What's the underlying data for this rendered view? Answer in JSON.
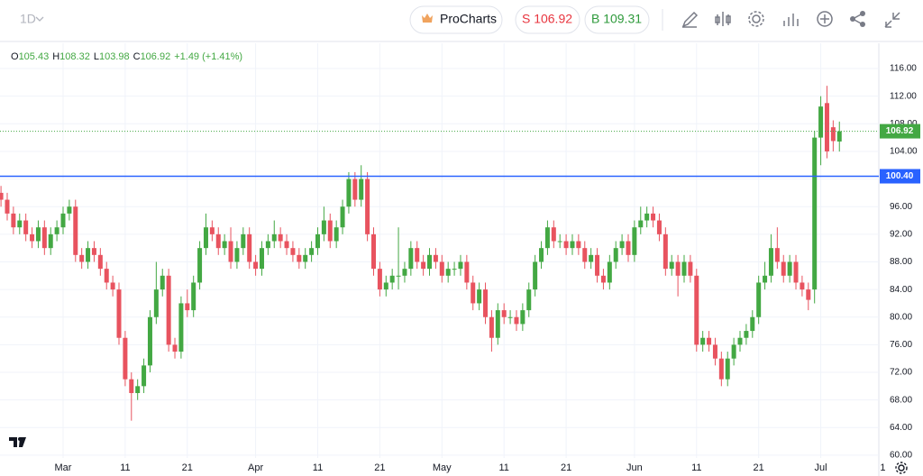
{
  "toolbar": {
    "interval": "1D",
    "procharts": "ProCharts",
    "sell": "S 106.92",
    "buy": "B 109.31"
  },
  "legend": {
    "items": [
      {
        "key": "O",
        "value": "105.43"
      },
      {
        "key": "H",
        "value": "108.32"
      },
      {
        "key": "L",
        "value": "103.98"
      },
      {
        "key": "C",
        "value": "106.92"
      }
    ],
    "change": "+1.49 (+1.41%)"
  },
  "chart_data": {
    "type": "candlestick",
    "up_color": "#43a843",
    "down_color": "#e8535f",
    "grid": true,
    "xlim": [
      -10.16,
      131.35
    ],
    "ylim": [
      59.6,
      119.66
    ],
    "xticks": [
      {
        "value": 0,
        "label": "Mar"
      },
      {
        "value": 10,
        "label": "11"
      },
      {
        "value": 20,
        "label": "21"
      },
      {
        "value": 31,
        "label": "Apr"
      },
      {
        "value": 41,
        "label": "11"
      },
      {
        "value": 51,
        "label": "21"
      },
      {
        "value": 61,
        "label": "May"
      },
      {
        "value": 71,
        "label": "11"
      },
      {
        "value": 81,
        "label": "21"
      },
      {
        "value": 92,
        "label": "Jun"
      },
      {
        "value": 102,
        "label": "11"
      },
      {
        "value": 112,
        "label": "21"
      },
      {
        "value": 122,
        "label": "Jul"
      },
      {
        "value": 132,
        "label": "1"
      }
    ],
    "yticks": [
      {
        "value": 60,
        "label": "60.00"
      },
      {
        "value": 64,
        "label": "64.00"
      },
      {
        "value": 68,
        "label": "68.00"
      },
      {
        "value": 72,
        "label": "72.00"
      },
      {
        "value": 76,
        "label": "76.00"
      },
      {
        "value": 80,
        "label": "80.00"
      },
      {
        "value": 84,
        "label": "84.00"
      },
      {
        "value": 88,
        "label": "88.00"
      },
      {
        "value": 92,
        "label": "92.00"
      },
      {
        "value": 96,
        "label": "96.00"
      },
      {
        "value": 100,
        "label": "100.00"
      },
      {
        "value": 104,
        "label": "104.00"
      },
      {
        "value": 108,
        "label": "108.00"
      },
      {
        "value": 112,
        "label": "112.00"
      },
      {
        "value": 116,
        "label": "116.00"
      }
    ],
    "price_lines": [
      {
        "value": 100.4,
        "label": "100.40",
        "color": "#2962ff"
      },
      {
        "value": 106.92,
        "label": "106.92",
        "color": "#43a843"
      }
    ],
    "x": [
      -10,
      -9,
      -8,
      -7,
      -6,
      -5,
      -4,
      -3,
      -2,
      -1,
      0,
      1,
      2,
      3,
      4,
      5,
      6,
      7,
      8,
      9,
      10,
      11,
      12,
      13,
      14,
      15,
      16,
      17,
      18,
      19,
      20,
      21,
      22,
      23,
      24,
      25,
      26,
      27,
      28,
      29,
      30,
      31,
      32,
      33,
      34,
      35,
      36,
      37,
      38,
      39,
      40,
      41,
      42,
      43,
      44,
      45,
      46,
      47,
      48,
      49,
      50,
      51,
      52,
      53,
      54,
      55,
      56,
      57,
      58,
      59,
      60,
      61,
      62,
      63,
      64,
      65,
      66,
      67,
      68,
      69,
      70,
      71,
      72,
      73,
      74,
      75,
      76,
      77,
      78,
      79,
      80,
      81,
      82,
      83,
      84,
      85,
      86,
      87,
      88,
      89,
      90,
      91,
      92,
      93,
      94,
      95,
      96,
      97,
      98,
      99,
      100,
      101,
      102,
      103,
      104,
      105,
      106,
      107,
      108,
      109,
      110,
      111,
      112,
      113,
      114,
      115,
      116,
      117,
      118,
      119,
      120,
      121,
      122,
      123,
      124,
      125
    ],
    "open": [
      98,
      97,
      95,
      93,
      94,
      92,
      91,
      93,
      90,
      92,
      93,
      95,
      96,
      89,
      88,
      90,
      89,
      87,
      85,
      84,
      77,
      71,
      69,
      70,
      73,
      80,
      84,
      86,
      76,
      75,
      82,
      81,
      85,
      90,
      93,
      92,
      90,
      91,
      88,
      90,
      92,
      88,
      87,
      90,
      91,
      92,
      91,
      90,
      89,
      88,
      89,
      90,
      92,
      94,
      91,
      93,
      96,
      100,
      97,
      100,
      92,
      87,
      84,
      85,
      86,
      86,
      87,
      90,
      88,
      87,
      89,
      88,
      86,
      87,
      87,
      88,
      85,
      82,
      84,
      80,
      77,
      81,
      80,
      80,
      79,
      81,
      84,
      88,
      90,
      93,
      91,
      91,
      90,
      91,
      90,
      88,
      89,
      86,
      85,
      88,
      90,
      91,
      89,
      93,
      94,
      95,
      94,
      92,
      87,
      88,
      86,
      88,
      86,
      76,
      77,
      76,
      74,
      71,
      74,
      76,
      77,
      78,
      80,
      85,
      86,
      90,
      88,
      86,
      88,
      85,
      84,
      84,
      106,
      111,
      107.5,
      105.43
    ],
    "high": [
      99,
      98,
      96,
      95,
      95,
      93,
      94,
      94,
      93,
      94,
      96,
      97,
      97,
      90,
      91,
      91,
      90,
      88,
      86,
      85,
      78,
      72,
      71,
      74,
      81,
      88,
      87,
      87,
      77,
      83,
      84,
      86,
      91,
      95,
      94,
      93,
      92,
      93,
      91,
      93,
      93,
      89,
      91,
      92,
      94,
      93,
      92,
      91,
      90,
      90,
      91,
      93,
      96,
      95,
      94,
      97,
      101,
      101,
      102,
      101,
      93,
      88,
      86,
      87,
      93,
      88,
      91,
      91,
      89,
      90,
      90,
      89,
      88,
      88,
      89,
      89,
      86,
      85,
      85,
      81,
      82,
      82,
      81,
      81,
      82,
      85,
      89,
      91,
      94,
      94,
      92,
      92,
      92,
      92,
      91,
      90,
      90,
      87,
      89,
      91,
      92,
      92,
      94,
      96,
      96,
      96,
      95,
      93,
      89,
      89,
      89,
      89,
      87,
      78,
      78,
      77,
      75,
      75,
      77,
      78,
      79,
      81,
      86,
      88,
      92,
      93,
      89,
      89,
      89,
      86,
      85,
      107,
      112,
      113.5,
      108.5,
      108.32
    ],
    "low": [
      96,
      94,
      92,
      92,
      91,
      90,
      90,
      89,
      89,
      91,
      92,
      94,
      88,
      87,
      87,
      88,
      86,
      84,
      83,
      76,
      70,
      65,
      68,
      69,
      72,
      79,
      83,
      75,
      74,
      74,
      80,
      80,
      84,
      89,
      91,
      89,
      89,
      87,
      87,
      89,
      87,
      86,
      86,
      89,
      90,
      90,
      89,
      88,
      87,
      87,
      88,
      89,
      91,
      90,
      90,
      92,
      95,
      96,
      96,
      91,
      86,
      83,
      83,
      84,
      84,
      85,
      86,
      87,
      86,
      86,
      87,
      85,
      85,
      86,
      86,
      84,
      81,
      81,
      79,
      75,
      76,
      79,
      79,
      78,
      78,
      80,
      83,
      87,
      89,
      90,
      90,
      89,
      89,
      89,
      87,
      87,
      85,
      84,
      84,
      87,
      89,
      88,
      88,
      92,
      93,
      93,
      91,
      86,
      86,
      83,
      85,
      85,
      75,
      75,
      75,
      73,
      70,
      70,
      73,
      75,
      76,
      77,
      79,
      84,
      85,
      87,
      85,
      85,
      84,
      83,
      81,
      82,
      102,
      103,
      104,
      103.98
    ],
    "close": [
      97,
      95,
      93,
      94,
      92,
      91,
      93,
      90,
      92,
      93,
      95,
      96,
      89,
      88,
      90,
      89,
      87,
      85,
      84,
      77,
      71,
      69,
      70,
      73,
      80,
      84,
      86,
      76,
      75,
      82,
      81,
      85,
      90,
      93,
      92,
      90,
      91,
      88,
      90,
      92,
      88,
      87,
      90,
      91,
      92,
      91,
      90,
      89,
      88,
      89,
      90,
      92,
      94,
      91,
      93,
      96,
      100,
      97,
      100,
      92,
      87,
      84,
      85,
      86,
      86,
      87,
      90,
      88,
      87,
      89,
      88,
      86,
      87,
      87,
      88,
      85,
      82,
      84,
      80,
      77,
      81,
      80,
      80,
      79,
      81,
      84,
      88,
      90,
      93,
      91,
      91,
      90,
      91,
      90,
      88,
      89,
      86,
      85,
      88,
      90,
      91,
      89,
      93,
      94,
      95,
      94,
      92,
      87,
      88,
      86,
      88,
      86,
      76,
      77,
      76,
      74,
      71,
      74,
      76,
      77,
      78,
      80,
      85,
      86,
      90,
      88,
      86,
      88,
      85,
      84,
      82.5,
      106,
      110.5,
      104,
      105.5,
      106.92
    ]
  }
}
